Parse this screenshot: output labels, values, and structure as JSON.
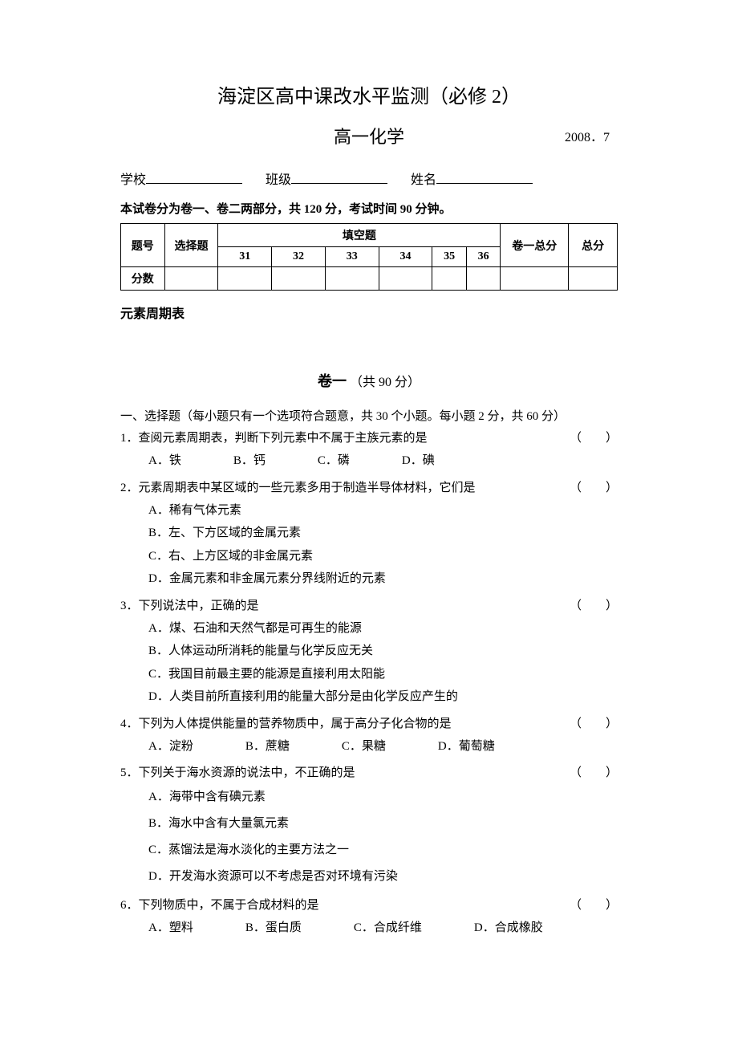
{
  "header": {
    "title": "海淀区高中课改水平监测（必修 2）",
    "subtitle": "高一化学",
    "date": "2008．7",
    "school_label": "学校",
    "class_label": "班级",
    "name_label": "姓名",
    "instruction": "本试卷分为卷一、卷二两部分，共 120 分，考试时间 90 分钟。"
  },
  "table": {
    "col_question_num": "题号",
    "col_choice": "选择题",
    "col_fill": "填空题",
    "fill_nums": [
      "31",
      "32",
      "33",
      "34",
      "35",
      "36"
    ],
    "col_part1_total": "卷一总分",
    "col_total": "总分",
    "row_score": "分数"
  },
  "section_label": "元素周期表",
  "part_one": {
    "title_bold": "卷一",
    "title_note": "（共 90 分）"
  },
  "section_header": "一、选择题（每小题只有一个选项符合题意，共 30 个小题。每小题 2 分，共 60 分）",
  "questions": [
    {
      "num": "1．",
      "text": "查阅元素周期表，判断下列元素中不属于主族元素的是",
      "options": [
        {
          "label": "A．",
          "text": "铁"
        },
        {
          "label": "B．",
          "text": "钙"
        },
        {
          "label": "C．",
          "text": "磷"
        },
        {
          "label": "D．",
          "text": "碘"
        }
      ],
      "layout": "inline"
    },
    {
      "num": "2．",
      "text": "元素周期表中某区域的一些元素多用于制造半导体材料，它们是",
      "options": [
        {
          "label": "A．",
          "text": "稀有气体元素"
        },
        {
          "label": "B．",
          "text": "左、下方区域的金属元素"
        },
        {
          "label": "C．",
          "text": "右、上方区域的非金属元素"
        },
        {
          "label": "D．",
          "text": "金属元素和非金属元素分界线附近的元素"
        }
      ],
      "layout": "block"
    },
    {
      "num": "3．",
      "text": "下列说法中，正确的是",
      "options": [
        {
          "label": "A．",
          "text": "煤、石油和天然气都是可再生的能源"
        },
        {
          "label": "B．",
          "text": "人体运动所消耗的能量与化学反应无关"
        },
        {
          "label": "C．",
          "text": "我国目前最主要的能源是直接利用太阳能"
        },
        {
          "label": "D．",
          "text": "人类目前所直接利用的能量大部分是由化学反应产生的"
        }
      ],
      "layout": "block"
    },
    {
      "num": "4．",
      "text": "下列为人体提供能量的营养物质中，属于高分子化合物的是",
      "options": [
        {
          "label": "A．",
          "text": "淀粉"
        },
        {
          "label": "B．",
          "text": "蔗糖"
        },
        {
          "label": "C．",
          "text": "果糖"
        },
        {
          "label": "D．",
          "text": "葡萄糖"
        }
      ],
      "layout": "inline"
    },
    {
      "num": "5．",
      "text": "下列关于海水资源的说法中，不正确的是",
      "options": [
        {
          "label": "A．",
          "text": "海带中含有碘元素"
        },
        {
          "label": "B．",
          "text": "海水中含有大量氯元素"
        },
        {
          "label": "C．",
          "text": "蒸馏法是海水淡化的主要方法之一"
        },
        {
          "label": "D．",
          "text": "开发海水资源可以不考虑是否对环境有污染"
        }
      ],
      "layout": "block-spaced"
    },
    {
      "num": "6．",
      "text": "下列物质中，不属于合成材料的是",
      "options": [
        {
          "label": "A．",
          "text": "塑料"
        },
        {
          "label": "B．",
          "text": "蛋白质"
        },
        {
          "label": "C．",
          "text": "合成纤维"
        },
        {
          "label": "D．",
          "text": "合成橡胶"
        }
      ],
      "layout": "inline"
    }
  ],
  "paren_open": "（",
  "paren_close": "）",
  "paren_space": "　　"
}
